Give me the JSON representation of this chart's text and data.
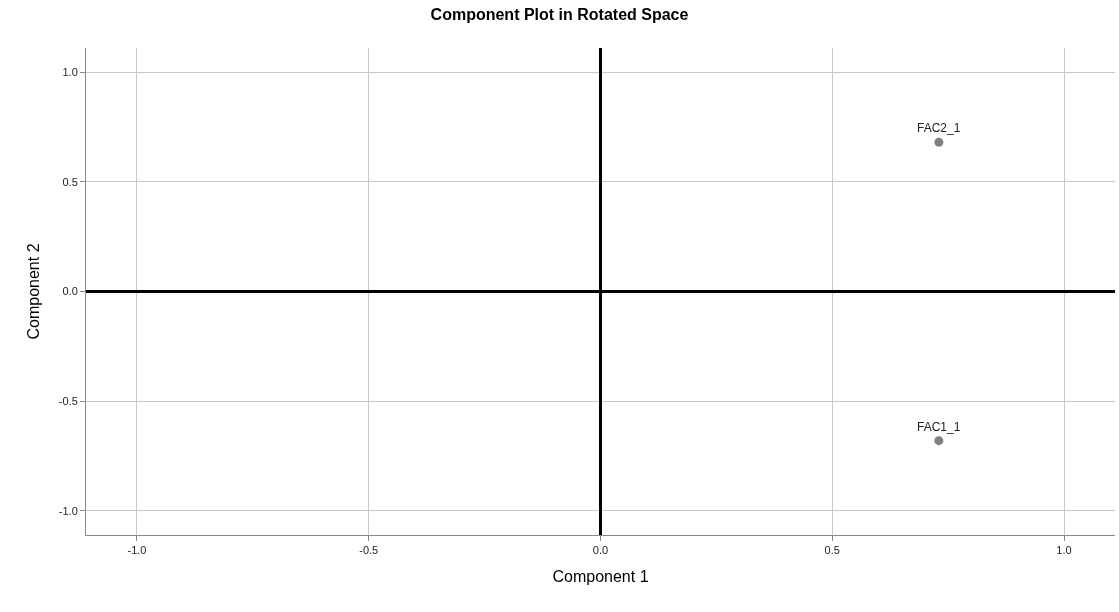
{
  "chart_data": {
    "type": "scatter",
    "title": "Component Plot in Rotated Space",
    "xlabel": "Component 1",
    "ylabel": "Component 2",
    "x": [
      0.73,
      0.73
    ],
    "series": [
      {
        "color": "#808080",
        "values": [
          -0.68,
          0.68
        ]
      }
    ],
    "annotations": [
      {
        "text": "FAC1_1",
        "x": 0.73,
        "y": -0.68
      },
      {
        "text": "FAC2_1",
        "x": 0.73,
        "y": 0.68
      }
    ],
    "xlim": [
      -1.11,
      1.11
    ],
    "ylim": [
      -1.11,
      1.11
    ],
    "xticks": [
      {
        "value": -1.0,
        "label": "-1.0"
      },
      {
        "value": -0.5,
        "label": "-0.5"
      },
      {
        "value": 0.0,
        "label": "0.0"
      },
      {
        "value": 0.5,
        "label": "0.5"
      },
      {
        "value": 1.0,
        "label": "1.0"
      }
    ],
    "yticks": [
      {
        "value": -1.0,
        "label": "-1.0"
      },
      {
        "value": -0.5,
        "label": "-0.5"
      },
      {
        "value": 0.0,
        "label": "0.0"
      },
      {
        "value": 0.5,
        "label": "0.5"
      },
      {
        "value": 1.0,
        "label": "1.0"
      }
    ],
    "grid": true,
    "marker": "circle"
  }
}
